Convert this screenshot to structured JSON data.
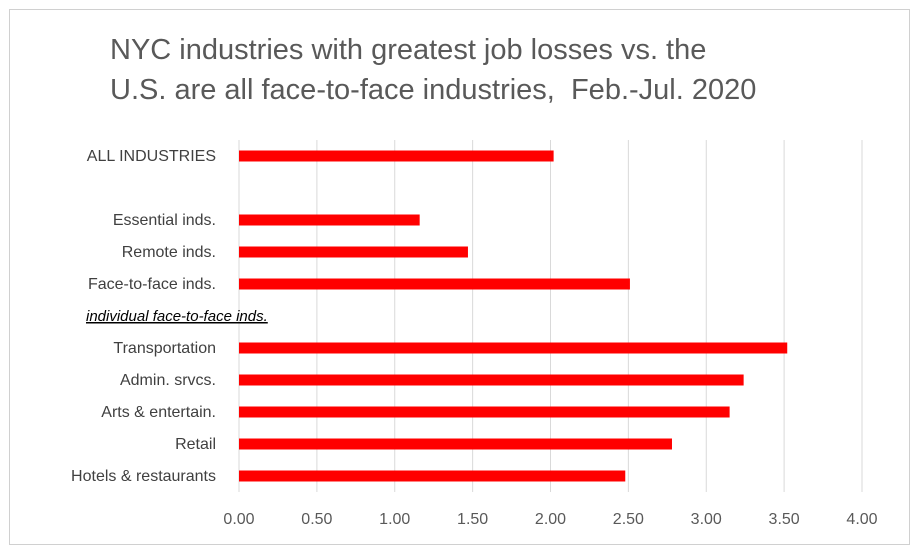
{
  "title_lines": [
    "NYC industries with greatest job losses vs. the",
    "U.S. are all face-to-face industries,  Feb.-Jul. 2020"
  ],
  "colors": {
    "bar": "#ff0000",
    "grid": "#d9d9d9",
    "text": "#595959"
  },
  "chart_data": {
    "type": "bar",
    "orientation": "horizontal",
    "title": "NYC industries with greatest job losses vs. the U.S. are all face-to-face industries,  Feb.-Jul. 2020",
    "categories": [
      "ALL INDUSTRIES",
      "",
      "Essential inds.",
      "Remote inds.",
      "Face-to-face inds.",
      "individual face-to-face inds.",
      "Transportation",
      "Admin. srvcs.",
      "Arts & entertain.",
      "Retail",
      "Hotels & restaurants"
    ],
    "values": [
      2.02,
      null,
      1.16,
      1.47,
      2.51,
      null,
      3.52,
      3.24,
      3.15,
      2.78,
      2.48
    ],
    "xlim": [
      0,
      4
    ],
    "xticks": [
      "0.00",
      "0.50",
      "1.00",
      "1.50",
      "2.00",
      "2.50",
      "3.00",
      "3.50",
      "4.00"
    ],
    "xlabel": "",
    "ylabel": "",
    "grid": true,
    "legend": "none"
  }
}
